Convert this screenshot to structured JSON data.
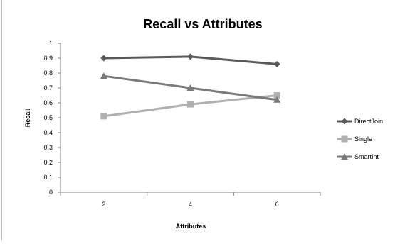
{
  "chart_data": {
    "type": "line",
    "title": "Recall vs Attributes",
    "xlabel": "Attributes",
    "ylabel": "Recall",
    "categories": [
      "2",
      "4",
      "6"
    ],
    "ylim": [
      0,
      1
    ],
    "yticks": [
      "0",
      "0.1",
      "0.2",
      "0.3",
      "0.4",
      "0.5",
      "0.6",
      "0.7",
      "0.8",
      "0.9",
      "1"
    ],
    "grid": false,
    "legend_position": "right",
    "series": [
      {
        "name": "DirectJoin",
        "values": [
          0.9,
          0.91,
          0.86
        ],
        "color": "#595959",
        "marker": "diamond"
      },
      {
        "name": "Single",
        "values": [
          0.51,
          0.59,
          0.65
        ],
        "color": "#b0b0b0",
        "marker": "square"
      },
      {
        "name": "SmartInt",
        "values": [
          0.78,
          0.7,
          0.62
        ],
        "color": "#7a7a7a",
        "marker": "triangle"
      }
    ]
  }
}
